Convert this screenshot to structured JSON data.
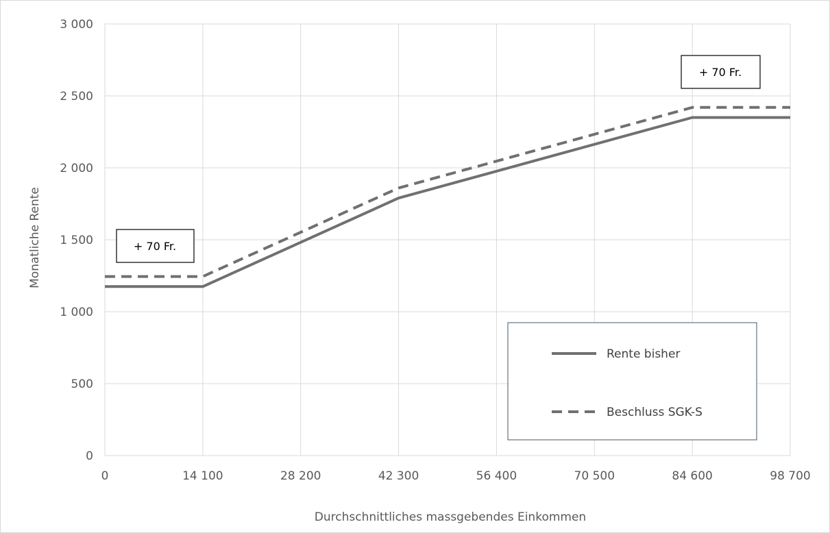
{
  "chart_data": {
    "type": "line",
    "xlabel": "Durchschnittliches massgebendes Einkommen",
    "ylabel": "Monatliche Rente",
    "xlim": [
      0,
      98700
    ],
    "ylim": [
      0,
      3000
    ],
    "x_ticks": [
      0,
      14100,
      28200,
      42300,
      56400,
      70500,
      84600,
      98700
    ],
    "x_tick_labels": [
      "0",
      "14 100",
      "28 200",
      "42 300",
      "56 400",
      "70 500",
      "84 600",
      "98 700"
    ],
    "y_ticks": [
      0,
      500,
      1000,
      1500,
      2000,
      2500,
      3000
    ],
    "y_tick_labels": [
      "0",
      "500",
      "1 000",
      "1 500",
      "2 000",
      "2 500",
      "3 000"
    ],
    "grid": "vertical and horizontal",
    "legend_position": "bottom-right",
    "series": [
      {
        "name": "Rente bisher",
        "style": "solid",
        "color": "#707070",
        "points": [
          [
            0,
            1175
          ],
          [
            14100,
            1175
          ],
          [
            42300,
            1790
          ],
          [
            84600,
            2350
          ],
          [
            98700,
            2350
          ]
        ]
      },
      {
        "name": "Beschluss SGK-S",
        "style": "dashed",
        "color": "#707070",
        "points": [
          [
            0,
            1245
          ],
          [
            14100,
            1245
          ],
          [
            42300,
            1860
          ],
          [
            84600,
            2420
          ],
          [
            98700,
            2420
          ]
        ]
      }
    ],
    "annotations": [
      {
        "text": "+ 70 Fr.",
        "near": "left"
      },
      {
        "text": "+ 70 Fr.",
        "near": "right"
      }
    ]
  }
}
